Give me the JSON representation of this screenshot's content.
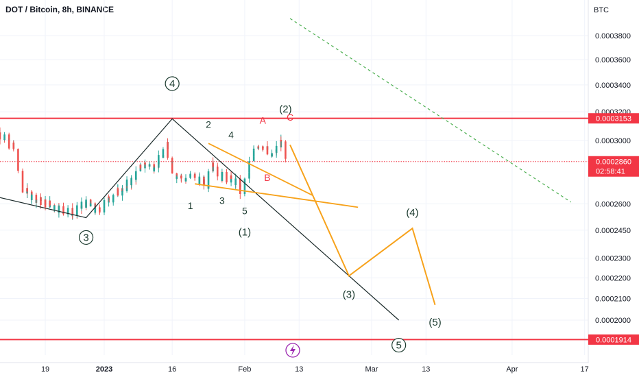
{
  "header": {
    "title": "DOT / Bitcoin, 8h, BINANCE",
    "currency": "BTC"
  },
  "chart_data": {
    "type": "candlestick",
    "symbol": "DOT / Bitcoin",
    "interval": "8h",
    "exchange": "BINANCE",
    "y_axis": {
      "unit": "BTC",
      "ticks": [
        "0.0003800",
        "0.0003600",
        "0.0003400",
        "0.0003200",
        "0.0003000",
        "0.0002600",
        "0.0002450",
        "0.0002300",
        "0.0002200",
        "0.0002100",
        "0.0002000"
      ],
      "scale": "log"
    },
    "x_axis": {
      "ticks": [
        "19",
        "2023",
        "16",
        "Feb",
        "13",
        "Mar",
        "13",
        "Apr",
        "17"
      ]
    },
    "price_tags": {
      "resistance": "0.0003153",
      "current": "0.0002860",
      "countdown": "02:58:41",
      "support": "0.0001914"
    },
    "levels": [
      {
        "name": "resistance",
        "value": 0.0003153,
        "color": "#f23645"
      },
      {
        "name": "support",
        "value": 0.0001914,
        "color": "#f23645"
      },
      {
        "name": "current-price",
        "value": 0.000286,
        "color": "#f23645",
        "style": "dotted"
      }
    ],
    "close_path": [
      [
        "2022-12-07",
        0.000313
      ],
      [
        "2022-12-09",
        0.000305
      ],
      [
        "2022-12-11",
        0.0003
      ],
      [
        "2022-12-13",
        0.000292
      ],
      [
        "2022-12-14",
        0.00027
      ],
      [
        "2022-12-16",
        0.000265
      ],
      [
        "2022-12-18",
        0.000262
      ],
      [
        "2022-12-20",
        0.00026
      ],
      [
        "2022-12-23",
        0.000257
      ],
      [
        "2022-12-26",
        0.000254
      ],
      [
        "2022-12-28",
        0.000261
      ],
      [
        "2022-12-31",
        0.000255
      ],
      [
        "2023-01-02",
        0.000262
      ],
      [
        "2023-01-05",
        0.000268
      ],
      [
        "2023-01-08",
        0.000275
      ],
      [
        "2023-01-10",
        0.000285
      ],
      [
        "2023-01-12",
        0.000283
      ],
      [
        "2023-01-14",
        0.000288
      ],
      [
        "2023-01-15",
        0.000296
      ],
      [
        "2023-01-17",
        0.000278
      ],
      [
        "2023-01-19",
        0.000275
      ],
      [
        "2023-01-21",
        0.000277
      ],
      [
        "2023-01-24",
        0.000271
      ],
      [
        "2023-01-25",
        0.000288
      ],
      [
        "2023-01-27",
        0.000277
      ],
      [
        "2023-01-29",
        0.000275
      ],
      [
        "2023-01-31",
        0.000272
      ],
      [
        "2023-02-01",
        0.000265
      ],
      [
        "2023-02-02",
        0.000278
      ],
      [
        "2023-02-04",
        0.000298
      ],
      [
        "2023-02-06",
        0.000296
      ],
      [
        "2023-02-07",
        0.000288
      ],
      [
        "2023-02-09",
        0.000296
      ],
      [
        "2023-02-10",
        0.000305
      ],
      [
        "2023-02-10",
        0.000286
      ]
    ],
    "wave_counts": [
      {
        "label": "3",
        "circled": true,
        "color": "#1b3a2e"
      },
      {
        "label": "4",
        "circled": true,
        "color": "#1b3a2e"
      },
      {
        "label": "5",
        "circled": true,
        "color": "#1b3a2e"
      },
      {
        "label": "(1)",
        "color": "#1b3a2e"
      },
      {
        "label": "(2)",
        "color": "#1b3a2e"
      },
      {
        "label": "(3)",
        "color": "#1b3a2e"
      },
      {
        "label": "(4)",
        "color": "#1b3a2e"
      },
      {
        "label": "(5)",
        "color": "#1b3a2e"
      },
      {
        "label": "1",
        "color": "#1b3a2e"
      },
      {
        "label": "2",
        "color": "#1b3a2e"
      },
      {
        "label": "3",
        "color": "#1b3a2e"
      },
      {
        "label": "4",
        "color": "#1b3a2e"
      },
      {
        "label": "5",
        "color": "#1b3a2e"
      },
      {
        "label": "A",
        "color": "#f23645"
      },
      {
        "label": "B",
        "color": "#f23645"
      },
      {
        "label": "C",
        "color": "#f23645"
      }
    ],
    "colors": {
      "up": "#26a69a",
      "down": "#ef5350",
      "projection": "#f7a21b",
      "trendline": "#1b2a2a",
      "dashed": "#4caf50"
    }
  }
}
